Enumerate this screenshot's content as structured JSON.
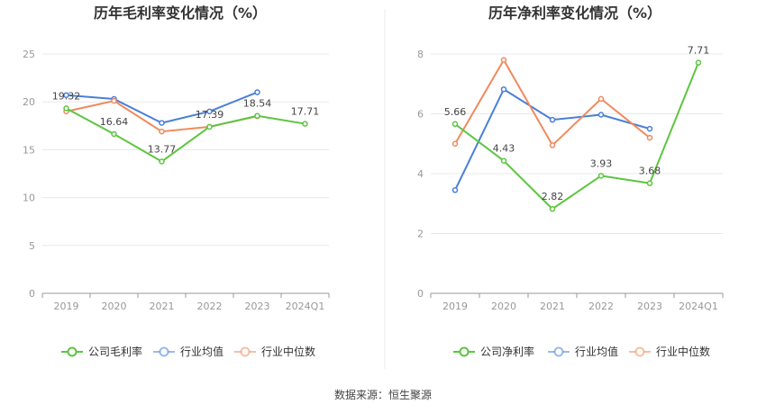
{
  "source": "数据来源：恒生聚源",
  "colors": {
    "company": "#5dc540",
    "avg": "#4a7fd8",
    "median": "#f08a5d",
    "grid": "#e8e8e8",
    "axis": "#999999"
  },
  "chart_data": [
    {
      "type": "line",
      "title": "历年毛利率变化情况（%）",
      "categories": [
        "2019",
        "2020",
        "2021",
        "2022",
        "2023",
        "2024Q1"
      ],
      "ylim": [
        0,
        25
      ],
      "yticks": [
        0,
        5,
        10,
        15,
        20,
        25
      ],
      "grid": true,
      "legend_placement": "bottom",
      "series": [
        {
          "name": "公司毛利率",
          "key": "company",
          "values": [
            19.32,
            16.64,
            13.77,
            17.39,
            18.54,
            17.71
          ],
          "labels": [
            "19.32",
            "16.64",
            "13.77",
            "17.39",
            "18.54",
            "17.71"
          ]
        },
        {
          "name": "行业均值",
          "key": "avg",
          "values": [
            20.7,
            20.3,
            17.8,
            19.0,
            21.0,
            null
          ]
        },
        {
          "name": "行业中位数",
          "key": "median",
          "values": [
            19.0,
            20.1,
            16.9,
            17.4,
            18.5,
            null
          ]
        }
      ]
    },
    {
      "type": "line",
      "title": "历年净利率变化情况（%）",
      "categories": [
        "2019",
        "2020",
        "2021",
        "2022",
        "2023",
        "2024Q1"
      ],
      "ylim": [
        0,
        8
      ],
      "yticks": [
        0,
        2,
        4,
        6,
        8
      ],
      "grid": true,
      "legend_placement": "bottom",
      "series": [
        {
          "name": "公司净利率",
          "key": "company",
          "values": [
            5.66,
            4.43,
            2.82,
            3.93,
            3.68,
            7.71
          ],
          "labels": [
            "5.66",
            "4.43",
            "2.82",
            "3.93",
            "3.68",
            "7.71"
          ]
        },
        {
          "name": "行业均值",
          "key": "avg",
          "values": [
            3.45,
            6.82,
            5.8,
            5.97,
            5.5,
            null
          ]
        },
        {
          "name": "行业中位数",
          "key": "median",
          "values": [
            5.0,
            7.8,
            4.95,
            6.5,
            5.2,
            null
          ]
        }
      ]
    }
  ]
}
